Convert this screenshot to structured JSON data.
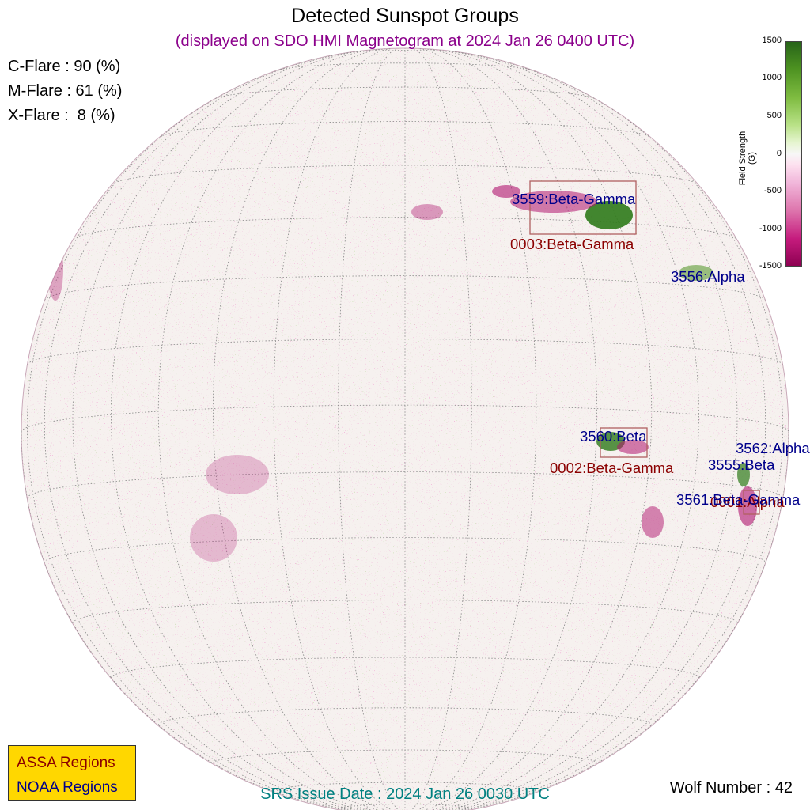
{
  "title": "Detected Sunspot Groups",
  "subtitle": "(displayed on SDO HMI Magnetogram at 2024 Jan 26 0400 UTC)",
  "flare_probabilities": {
    "c_flare": "C-Flare : 90 (%)",
    "m_flare": "M-Flare : 61 (%)",
    "x_flare": "X-Flare :  8 (%)"
  },
  "colorbar": {
    "title": "Field Strength (G)",
    "ticks": [
      "1500",
      "1000",
      "500",
      "0",
      "-500",
      "-1000",
      "-1500"
    ],
    "range": [
      -1500,
      1500
    ],
    "positive_color": "#276419",
    "negative_color": "#8e0152"
  },
  "regions": {
    "noaa": [
      "3559:Beta-Gamma",
      "3556:Alpha",
      "3560:Beta",
      "3562:Alpha",
      "3555:Beta",
      "3561:Beta-Gamma"
    ],
    "assa": [
      "0003:Beta-Gamma",
      "0002:Beta-Gamma",
      "0001:Alpha"
    ]
  },
  "legend": {
    "assa": "ASSA Regions",
    "noaa": "NOAA Regions"
  },
  "srs_issue_date": "SRS Issue Date : 2024 Jan 26 0030 UTC",
  "wolf_number": "Wolf Number : 42",
  "colors": {
    "noaa_label": "#00008b",
    "assa_label": "#8b0000",
    "box": "#b06060",
    "legend_bg": "#ffd700"
  }
}
